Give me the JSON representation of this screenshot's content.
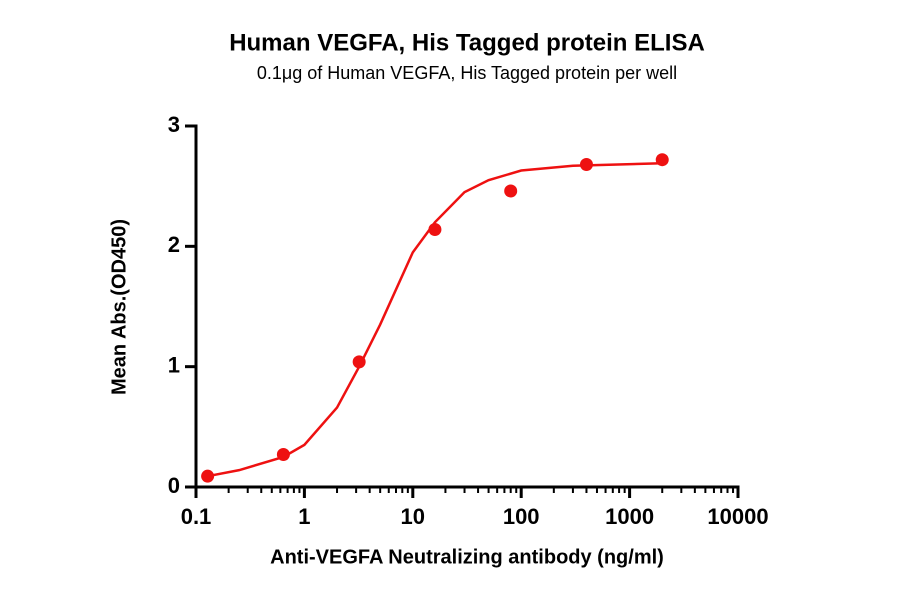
{
  "chart_data": {
    "type": "scatter",
    "title": "Human VEGFA, His Tagged protein ELISA",
    "subtitle": "0.1μg of Human VEGFA, His Tagged protein per well",
    "x_label": "Anti-VEGFA Neutralizing antibody (ng/ml)",
    "y_label": "Mean Abs.(OD450)",
    "log_x": true,
    "xlim": [
      0.1,
      10000
    ],
    "xticks": [
      0.1,
      1,
      10,
      100,
      1000,
      10000
    ],
    "xminorticks": [
      0.2,
      0.3,
      0.4,
      0.5,
      0.6,
      0.7,
      0.8,
      0.9,
      2,
      3,
      4,
      5,
      6,
      7,
      8,
      9,
      20,
      30,
      40,
      50,
      60,
      70,
      80,
      90,
      200,
      300,
      400,
      500,
      600,
      700,
      800,
      900,
      2000,
      3000,
      4000,
      5000,
      6000,
      7000,
      8000,
      9000
    ],
    "ylim": [
      0,
      3
    ],
    "yticks": [
      0,
      1,
      2,
      3
    ],
    "color": "#ee1111",
    "x": [
      0.128,
      0.64,
      3.2,
      16,
      80,
      400,
      2000
    ],
    "values": [
      0.09,
      0.27,
      1.04,
      2.14,
      2.46,
      2.68,
      2.72
    ],
    "fit_curve": {
      "x": [
        0.128,
        0.25,
        0.64,
        1,
        2,
        3.2,
        5,
        10,
        16,
        30,
        50,
        100,
        300,
        2000
      ],
      "values": [
        0.09,
        0.14,
        0.25,
        0.35,
        0.66,
        1.0,
        1.35,
        1.95,
        2.2,
        2.45,
        2.55,
        2.63,
        2.67,
        2.69
      ]
    }
  }
}
